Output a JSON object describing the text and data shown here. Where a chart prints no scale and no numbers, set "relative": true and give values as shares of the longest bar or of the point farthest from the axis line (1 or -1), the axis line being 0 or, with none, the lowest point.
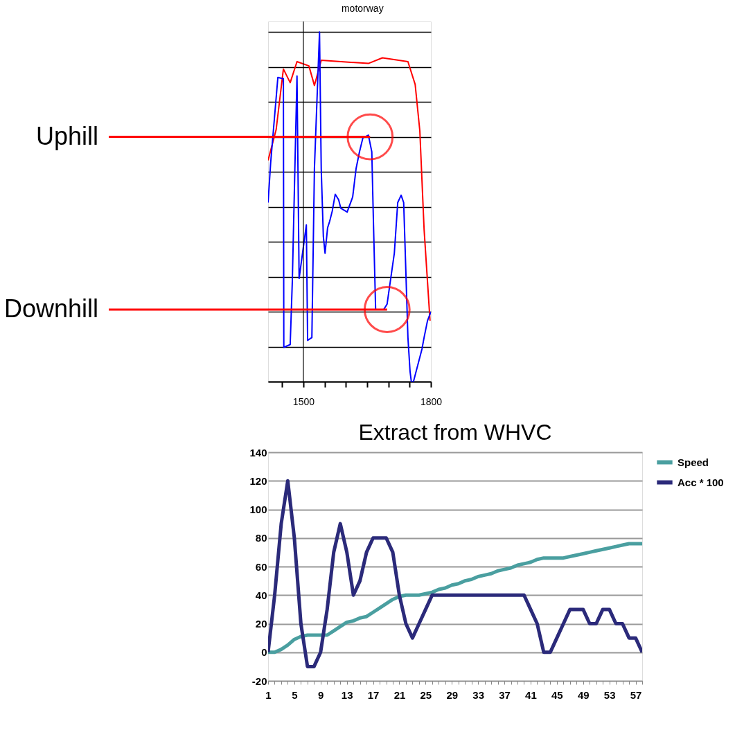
{
  "chart_data": [
    {
      "type": "line",
      "relative": true,
      "xlim": [
        1417,
        1800
      ],
      "xticks": [
        {
          "value": 1450,
          "label": null
        },
        1500,
        {
          "value": 1550,
          "label": null
        },
        {
          "value": 1600,
          "label": null
        },
        {
          "value": 1650,
          "label": null
        },
        {
          "value": 1700,
          "label": null
        },
        {
          "value": 1750,
          "label": null
        },
        1800
      ],
      "grid": "y",
      "ref_lines": [
        {
          "axis": "x",
          "value": 1500,
          "color": "#000000"
        }
      ],
      "annotations": [
        "motorway",
        {
          "text": "Uphill",
          "x": 1657,
          "y": 0.7
        },
        {
          "text": "Downhill",
          "x": 1697,
          "y": 0.206
        }
      ],
      "series": [
        {
          "color": "#ff0000",
          "x": [
            1417,
            1436,
            1453,
            1469,
            1485,
            1513,
            1526,
            1542,
            1653,
            1686,
            1746,
            1763,
            1774,
            1784,
            1798
          ],
          "values": [
            0.633,
            0.721,
            0.894,
            0.855,
            0.915,
            0.903,
            0.847,
            0.919,
            0.91,
            0.926,
            0.915,
            0.85,
            0.717,
            0.436,
            0.174
          ]
        },
        {
          "color": "#0000ff",
          "x": [
            1417,
            1423,
            1440,
            1453,
            1454,
            1469,
            1474,
            1480,
            1485,
            1490,
            1498,
            1507,
            1510,
            1520,
            1526,
            1538,
            1542,
            1547,
            1551,
            1557,
            1562,
            1568,
            1575,
            1583,
            1588,
            1603,
            1616,
            1624,
            1632,
            1640,
            1653,
            1661,
            1665,
            1670,
            1689,
            1697,
            1714,
            1722,
            1730,
            1736,
            1746,
            1751,
            1754,
            1759,
            1779,
            1784,
            1792,
            1800
          ],
          "values": [
            0.512,
            0.625,
            0.87,
            0.866,
            0.098,
            0.106,
            0.287,
            0.609,
            0.874,
            0.295,
            0.367,
            0.448,
            0.118,
            0.126,
            0.609,
            1,
            0.609,
            0.415,
            0.367,
            0.44,
            0.459,
            0.488,
            0.536,
            0.52,
            0.496,
            0.485,
            0.528,
            0.609,
            0.657,
            0.697,
            0.705,
            0.657,
            0.448,
            0.206,
            0.206,
            0.222,
            0.367,
            0.512,
            0.533,
            0.512,
            0.126,
            0.029,
            0,
            0,
            0.093,
            0.126,
            0.174,
            0.2
          ]
        }
      ]
    },
    {
      "type": "line",
      "title": "Extract from WHVC",
      "grid": "y",
      "legend": "right",
      "ylim": [
        -20,
        140
      ],
      "yticks": [
        -20,
        0,
        20,
        40,
        60,
        80,
        100,
        120,
        140
      ],
      "categories": [
        "1",
        null,
        null,
        null,
        "5",
        null,
        null,
        null,
        "9",
        null,
        null,
        null,
        "13",
        null,
        null,
        null,
        "17",
        null,
        null,
        null,
        "21",
        null,
        null,
        null,
        "25",
        null,
        null,
        null,
        "29",
        null,
        null,
        null,
        "33",
        null,
        null,
        null,
        "37",
        null,
        null,
        null,
        "41",
        null,
        null,
        null,
        "45",
        null,
        null,
        null,
        "49",
        null,
        null,
        null,
        "53",
        null,
        null,
        null,
        "57",
        null
      ],
      "series": [
        {
          "name": "Speed",
          "color": "#4a9fa0",
          "values": [
            0,
            0,
            2,
            5,
            9,
            11,
            12,
            12,
            12,
            12,
            15,
            18,
            21,
            22,
            24,
            25,
            28,
            31,
            34,
            37,
            39,
            40,
            40,
            40,
            41,
            42,
            44,
            45,
            47,
            48,
            50,
            51,
            53,
            54,
            55,
            57,
            58,
            59,
            61,
            62,
            63,
            65,
            66,
            66,
            66,
            66,
            67,
            68,
            69,
            70,
            71,
            72,
            73,
            74,
            75,
            76,
            76,
            76
          ]
        },
        {
          "name": "Acc * 100",
          "color": "#2b2a7a",
          "values": [
            0,
            40,
            90,
            120,
            80,
            20,
            -10,
            -10,
            0,
            30,
            70,
            90,
            70,
            40,
            50,
            70,
            80,
            80,
            80,
            70,
            40,
            20,
            10,
            20,
            30,
            40,
            40,
            40,
            40,
            40,
            40,
            40,
            40,
            40,
            40,
            40,
            40,
            40,
            40,
            40,
            30,
            20,
            0,
            0,
            10,
            20,
            30,
            30,
            30,
            20,
            20,
            30,
            30,
            20,
            20,
            10,
            10,
            0
          ]
        }
      ]
    }
  ]
}
